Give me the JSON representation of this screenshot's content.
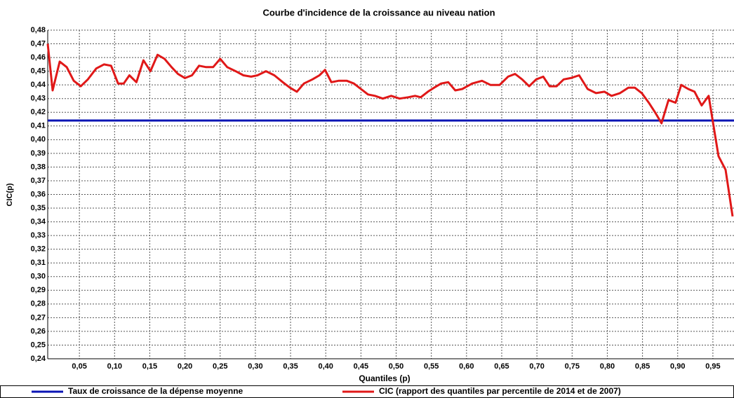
{
  "chart_data": {
    "type": "line",
    "title": "Courbe d'incidence de la croissance au niveau nation",
    "x_label": "Quantiles (p)",
    "y_label": "CIC(p)",
    "xlim": [
      0.005,
      0.98
    ],
    "ylim": [
      0.24,
      0.48
    ],
    "grid": true,
    "legend": "bottom",
    "xticks": [
      {
        "value": 0.05,
        "label": "0,05"
      },
      {
        "value": 0.1,
        "label": "0,10"
      },
      {
        "value": 0.15,
        "label": "0,15"
      },
      {
        "value": 0.2,
        "label": "0,20"
      },
      {
        "value": 0.25,
        "label": "0,25"
      },
      {
        "value": 0.3,
        "label": "0,30"
      },
      {
        "value": 0.35,
        "label": "0,35"
      },
      {
        "value": 0.4,
        "label": "0,40"
      },
      {
        "value": 0.45,
        "label": "0,45"
      },
      {
        "value": 0.5,
        "label": "0,50"
      },
      {
        "value": 0.55,
        "label": "0,55"
      },
      {
        "value": 0.6,
        "label": "0,60"
      },
      {
        "value": 0.65,
        "label": "0,65"
      },
      {
        "value": 0.7,
        "label": "0,70"
      },
      {
        "value": 0.75,
        "label": "0,75"
      },
      {
        "value": 0.8,
        "label": "0,80"
      },
      {
        "value": 0.85,
        "label": "0,85"
      },
      {
        "value": 0.9,
        "label": "0,90"
      },
      {
        "value": 0.95,
        "label": "0,95"
      }
    ],
    "yticks": [
      {
        "value": 0.24,
        "label": "0,24"
      },
      {
        "value": 0.25,
        "label": "0,25"
      },
      {
        "value": 0.26,
        "label": "0,26"
      },
      {
        "value": 0.27,
        "label": "0,27"
      },
      {
        "value": 0.28,
        "label": "0,28"
      },
      {
        "value": 0.29,
        "label": "0,29"
      },
      {
        "value": 0.3,
        "label": "0,30"
      },
      {
        "value": 0.31,
        "label": "0,31"
      },
      {
        "value": 0.32,
        "label": "0,32"
      },
      {
        "value": 0.33,
        "label": "0,33"
      },
      {
        "value": 0.34,
        "label": "0,34"
      },
      {
        "value": 0.35,
        "label": "0,35"
      },
      {
        "value": 0.36,
        "label": "0,36"
      },
      {
        "value": 0.37,
        "label": "0,37"
      },
      {
        "value": 0.38,
        "label": "0,38"
      },
      {
        "value": 0.39,
        "label": "0,39"
      },
      {
        "value": 0.4,
        "label": "0,40"
      },
      {
        "value": 0.41,
        "label": "0,41"
      },
      {
        "value": 0.42,
        "label": "0,42"
      },
      {
        "value": 0.43,
        "label": "0,43"
      },
      {
        "value": 0.44,
        "label": "0,44"
      },
      {
        "value": 0.45,
        "label": "0,45"
      },
      {
        "value": 0.46,
        "label": "0,46"
      },
      {
        "value": 0.47,
        "label": "0,47"
      },
      {
        "value": 0.48,
        "label": "0,48"
      }
    ],
    "series": [
      {
        "name": "Taux de croissance de la dépense moyenne",
        "color": "#0a14b4",
        "x": [
          0.005,
          0.98
        ],
        "values": [
          0.414,
          0.414
        ]
      },
      {
        "name": "CIC (rapport des quantiles par percentile de 2014 et de 2007)",
        "color": "#e01818",
        "x": [
          0.005,
          0.012,
          0.022,
          0.032,
          0.042,
          0.052,
          0.062,
          0.074,
          0.085,
          0.095,
          0.105,
          0.113,
          0.121,
          0.131,
          0.141,
          0.151,
          0.161,
          0.171,
          0.181,
          0.19,
          0.2,
          0.21,
          0.22,
          0.23,
          0.24,
          0.25,
          0.26,
          0.272,
          0.283,
          0.294,
          0.303,
          0.315,
          0.327,
          0.339,
          0.349,
          0.359,
          0.369,
          0.381,
          0.391,
          0.399,
          0.408,
          0.418,
          0.43,
          0.44,
          0.45,
          0.46,
          0.47,
          0.481,
          0.493,
          0.505,
          0.517,
          0.527,
          0.535,
          0.545,
          0.554,
          0.564,
          0.574,
          0.584,
          0.594,
          0.608,
          0.622,
          0.634,
          0.647,
          0.659,
          0.669,
          0.679,
          0.689,
          0.699,
          0.709,
          0.718,
          0.728,
          0.738,
          0.748,
          0.76,
          0.772,
          0.784,
          0.796,
          0.806,
          0.818,
          0.83,
          0.839,
          0.849,
          0.859,
          0.869,
          0.877,
          0.887,
          0.897,
          0.905,
          0.915,
          0.924,
          0.934,
          0.944,
          0.95,
          0.958,
          0.968,
          0.978
        ],
        "values": [
          0.47,
          0.436,
          0.457,
          0.453,
          0.443,
          0.439,
          0.444,
          0.452,
          0.455,
          0.454,
          0.441,
          0.441,
          0.447,
          0.442,
          0.458,
          0.45,
          0.462,
          0.459,
          0.453,
          0.448,
          0.445,
          0.447,
          0.454,
          0.453,
          0.453,
          0.459,
          0.453,
          0.45,
          0.447,
          0.446,
          0.447,
          0.45,
          0.447,
          0.442,
          0.438,
          0.435,
          0.441,
          0.444,
          0.447,
          0.451,
          0.442,
          0.443,
          0.443,
          0.441,
          0.437,
          0.433,
          0.432,
          0.43,
          0.432,
          0.43,
          0.431,
          0.432,
          0.431,
          0.435,
          0.438,
          0.441,
          0.442,
          0.436,
          0.437,
          0.441,
          0.443,
          0.44,
          0.44,
          0.446,
          0.448,
          0.444,
          0.439,
          0.444,
          0.446,
          0.439,
          0.439,
          0.444,
          0.445,
          0.447,
          0.437,
          0.434,
          0.435,
          0.432,
          0.434,
          0.438,
          0.438,
          0.434,
          0.427,
          0.419,
          0.412,
          0.429,
          0.427,
          0.44,
          0.437,
          0.435,
          0.425,
          0.432,
          0.413,
          0.388,
          0.378,
          0.344
        ]
      }
    ]
  }
}
